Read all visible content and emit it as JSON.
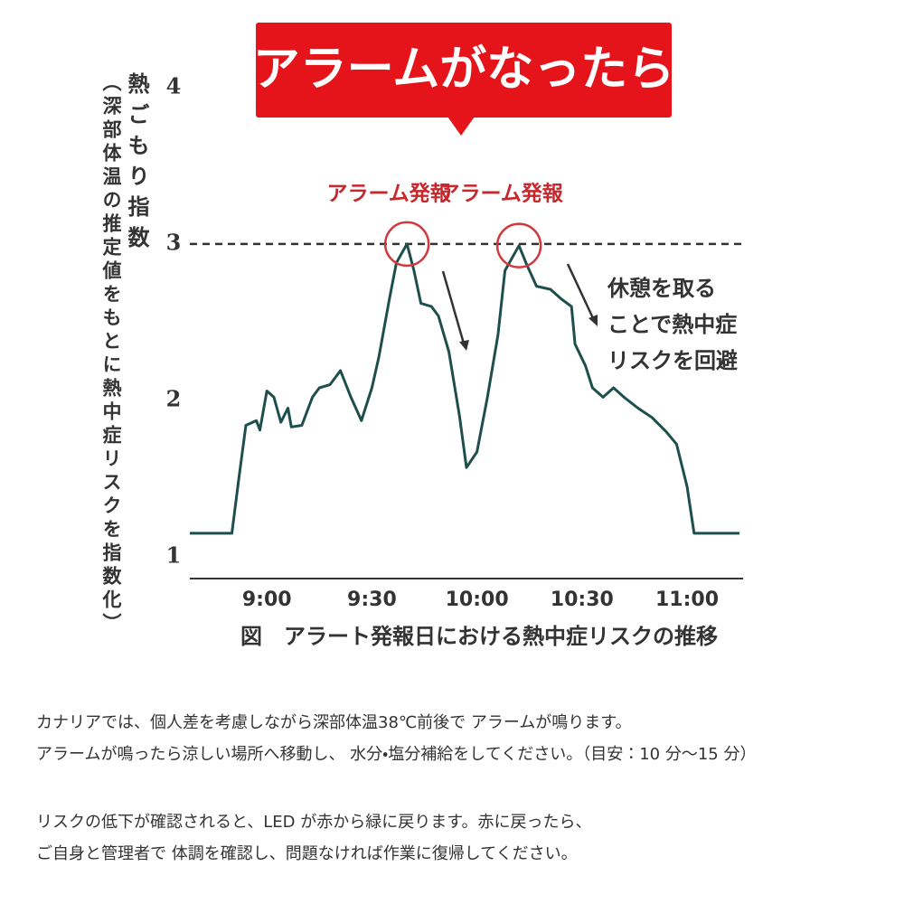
{
  "banner": "アラームがなったら",
  "chart_data": {
    "type": "line",
    "caption": "図　アラート発報日における熱中症リスクの推移",
    "ylabel": "熱ごもり指数",
    "ylabel_note": "（深部体温の推定値をもとに熱中症リスクを指数化）",
    "x": [
      "8:38",
      "8:50",
      "8:52",
      "8:54",
      "8:57",
      "8:58",
      "9:00",
      "9:02",
      "9:04",
      "9:06",
      "9:07",
      "9:10",
      "9:13",
      "9:15",
      "9:18",
      "9:21",
      "9:24",
      "9:27",
      "9:30",
      "9:32",
      "9:35",
      "9:37",
      "9:40",
      "9:42",
      "9:44",
      "9:47",
      "9:49",
      "9:52",
      "9:55",
      "9:57",
      "10:00",
      "10:03",
      "10:06",
      "10:08",
      "10:12",
      "10:14",
      "10:17",
      "10:21",
      "10:24",
      "10:27",
      "10:28",
      "10:31",
      "10:33",
      "10:36",
      "10:39",
      "10:42",
      "10:46",
      "10:50",
      "10:54",
      "10:57",
      "11:00",
      "11:02",
      "11:15"
    ],
    "series": [
      {
        "color": "#1f4f4c",
        "values": [
          1.15,
          1.15,
          1.5,
          1.84,
          1.87,
          1.81,
          2.06,
          2.02,
          1.86,
          1.95,
          1.83,
          1.84,
          2.02,
          2.08,
          2.1,
          2.19,
          2.02,
          1.87,
          2.08,
          2.28,
          2.65,
          2.88,
          3.0,
          2.83,
          2.62,
          2.6,
          2.54,
          2.31,
          1.9,
          1.57,
          1.67,
          2.02,
          2.42,
          2.83,
          2.99,
          2.88,
          2.73,
          2.71,
          2.65,
          2.6,
          2.36,
          2.22,
          2.08,
          2.02,
          2.08,
          2.02,
          1.95,
          1.89,
          1.8,
          1.72,
          1.45,
          1.15,
          1.15
        ]
      }
    ],
    "xlim": [
      "8:38",
      "11:16"
    ],
    "xticks": [
      "9:00",
      "9:30",
      "10:00",
      "10:30",
      "11:00"
    ],
    "ylim": [
      0.86,
      4
    ],
    "yticks": [
      1,
      2,
      3,
      4
    ],
    "grid": false,
    "threshold": 3,
    "alarms": [
      {
        "x": "9:40",
        "label": "アラーム発報"
      },
      {
        "x": "10:12",
        "label": "アラーム発報"
      }
    ],
    "note_lines": [
      "休憩を取る",
      "ことで熱中症",
      "リスクを回避"
    ]
  },
  "body": {
    "paragraphs": [
      [
        "カナリアでは、個人差を考慮しながら深部体温38℃前後で アラームが鳴ります。",
        "アラームが鳴ったら涼しい場所へ移動し、 水分・塩分補給をしてください。（目安：10 分～15 分）"
      ],
      [
        "リスクの低下が確認されると、LED が赤から緑に戻ります。赤に戻ったら、",
        "ご自身と管理者で 体調を確認し、問題なければ作業に復帰してください。"
      ]
    ]
  }
}
